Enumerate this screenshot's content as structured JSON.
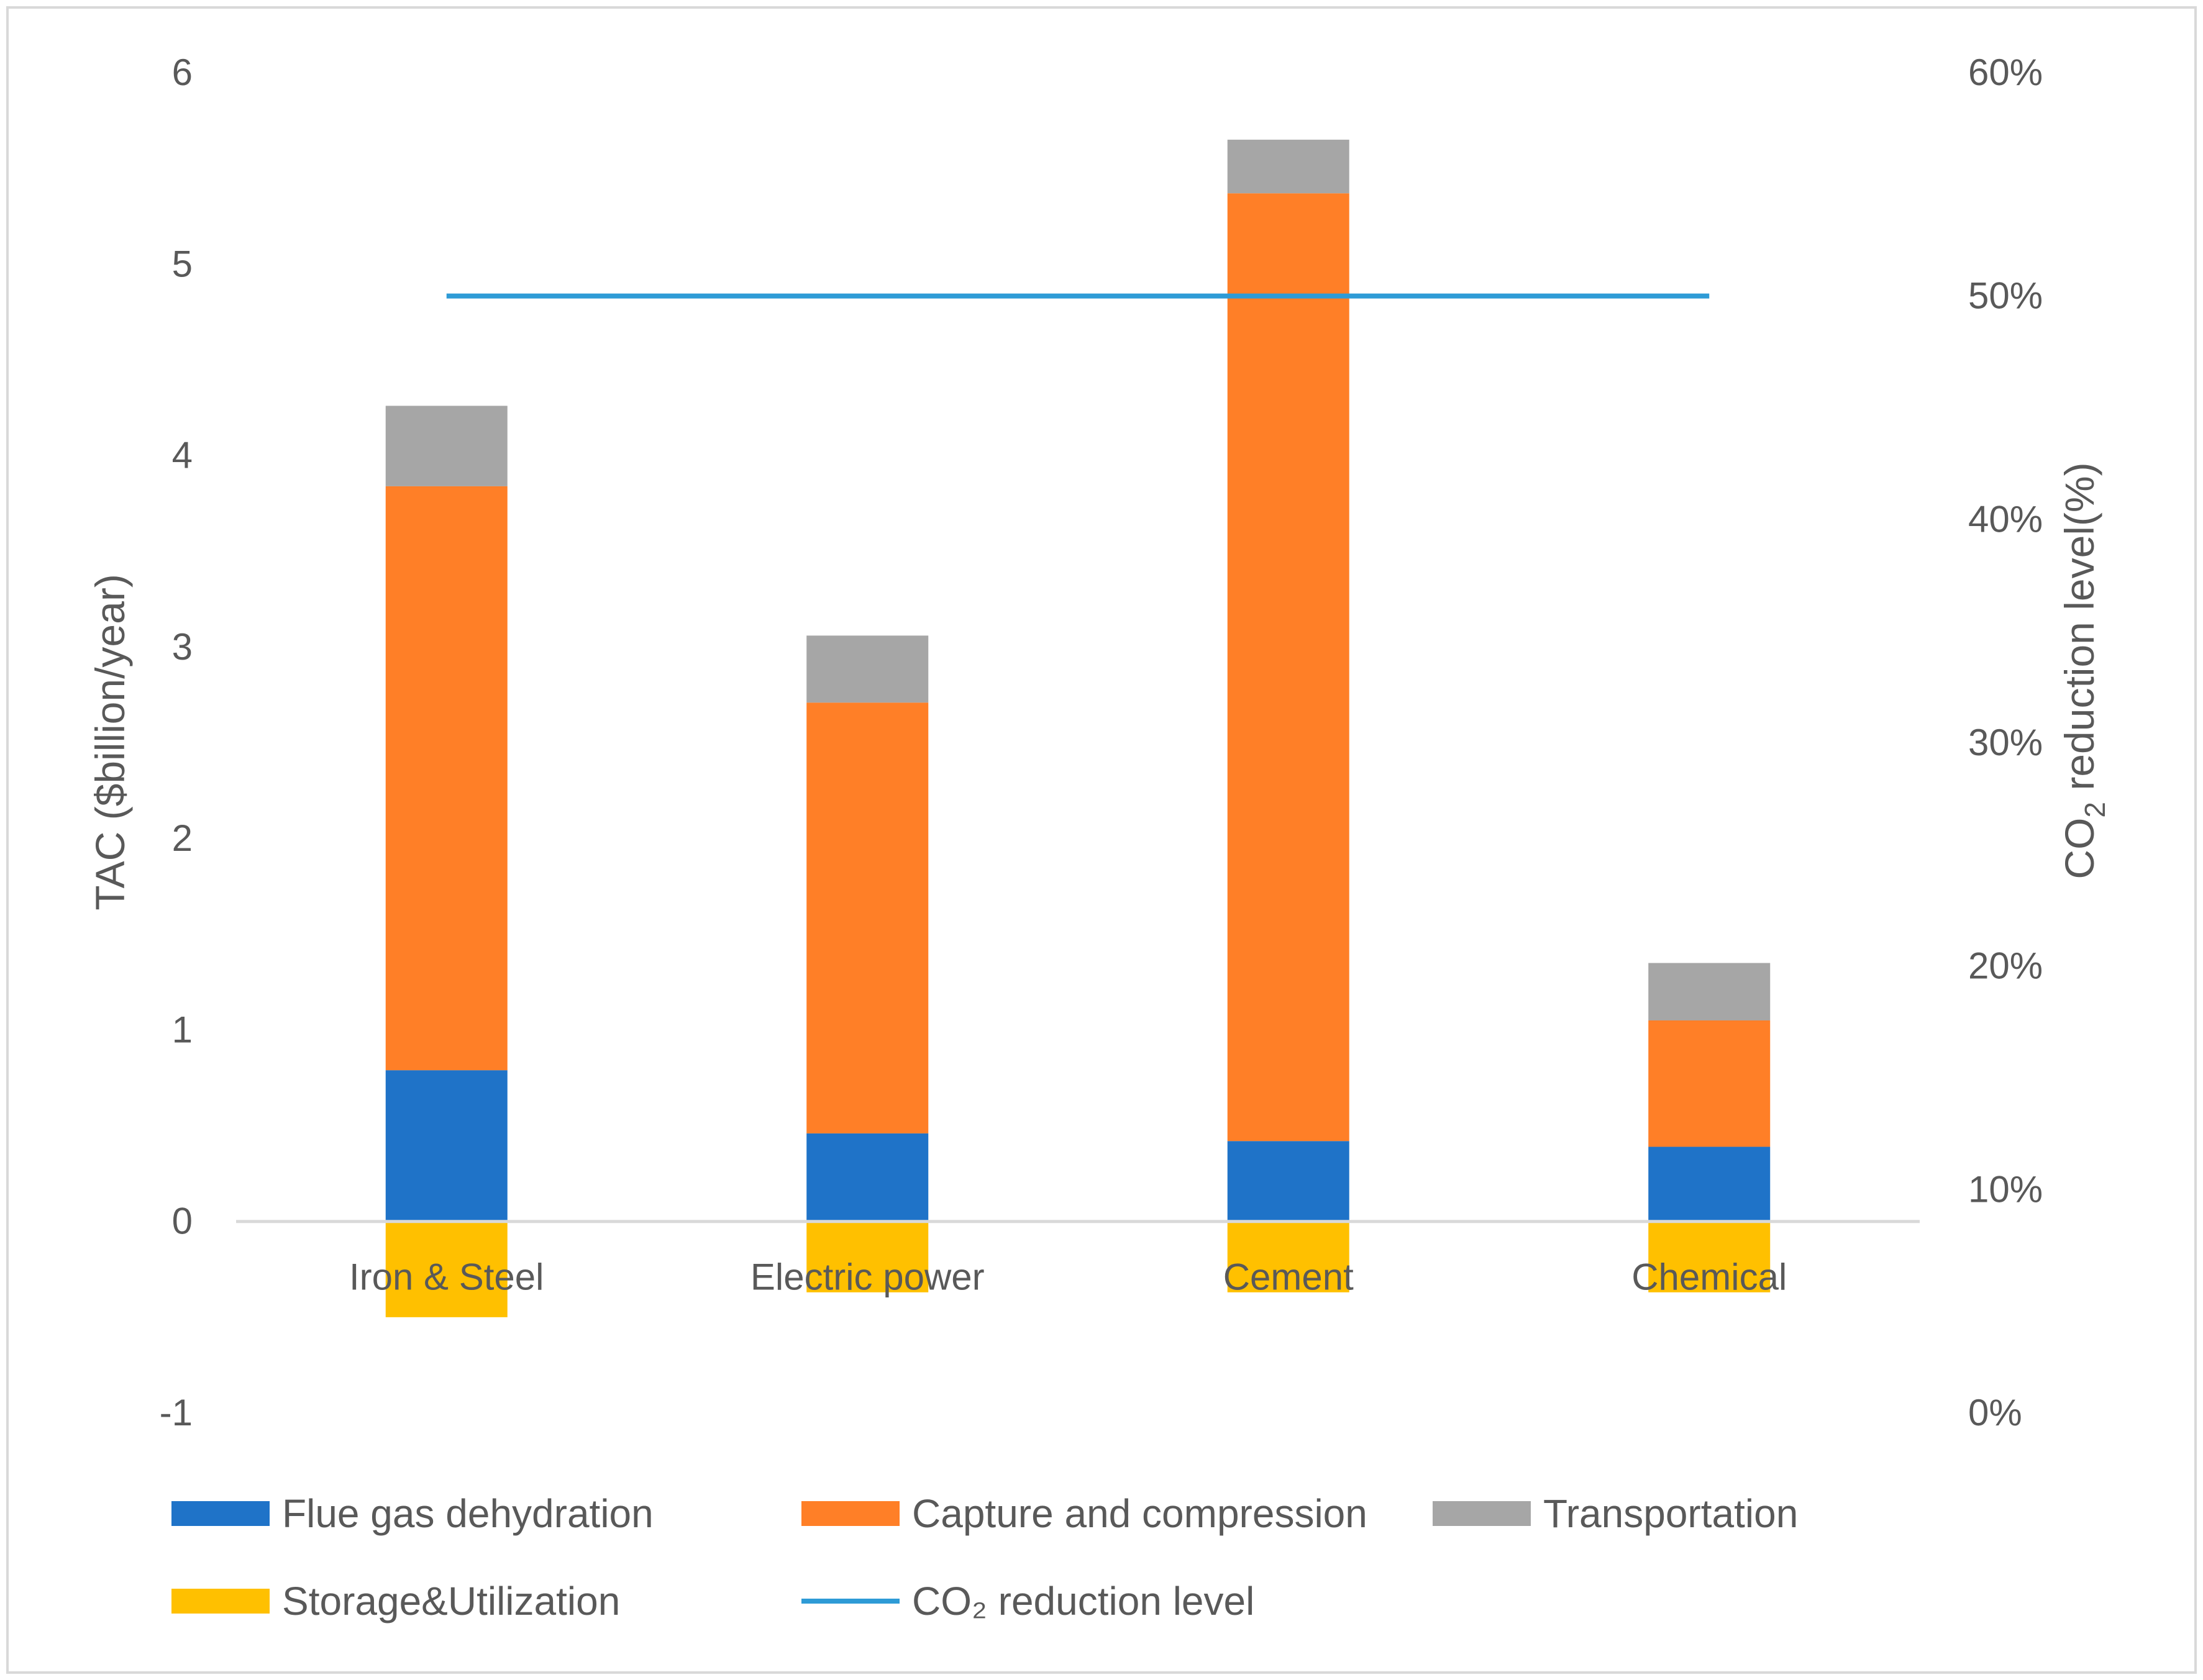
{
  "chart_data": {
    "type": "bar",
    "stacked": true,
    "categories": [
      "Iron & Steel",
      "Electric power",
      "Cement",
      "Chemical"
    ],
    "series": [
      {
        "name": "Flue gas dehydration",
        "color": "#1F73C8",
        "values": [
          0.79,
          0.46,
          0.42,
          0.39
        ]
      },
      {
        "name": "Capture and compression",
        "color": "#FF7F27",
        "values": [
          3.05,
          2.25,
          4.95,
          0.66
        ]
      },
      {
        "name": "Transportation",
        "color": "#A6A6A6",
        "values": [
          0.42,
          0.35,
          0.28,
          0.3
        ]
      },
      {
        "name": "Storage&Utilization",
        "color": "#FFC000",
        "values": [
          -0.5,
          -0.37,
          -0.37,
          -0.37
        ]
      }
    ],
    "line_series": {
      "name": "CO₂ reduction level",
      "color": "#2E9BD6",
      "values": [
        0.5,
        0.5,
        0.5,
        0.5
      ]
    },
    "ylabel": "TAC ($billion/year)",
    "ylabel2_parts": {
      "pre": "CO",
      "sub": "2",
      "post": " reduction level(%)"
    },
    "ylim": [
      -1,
      6
    ],
    "yticks": [
      "-1",
      "0",
      "1",
      "2",
      "3",
      "4",
      "5",
      "6"
    ],
    "y2lim": [
      0,
      0.6
    ],
    "y2ticks": [
      "0%",
      "10%",
      "20%",
      "30%",
      "40%",
      "50%",
      "60%"
    ],
    "legend_position": "bottom"
  }
}
